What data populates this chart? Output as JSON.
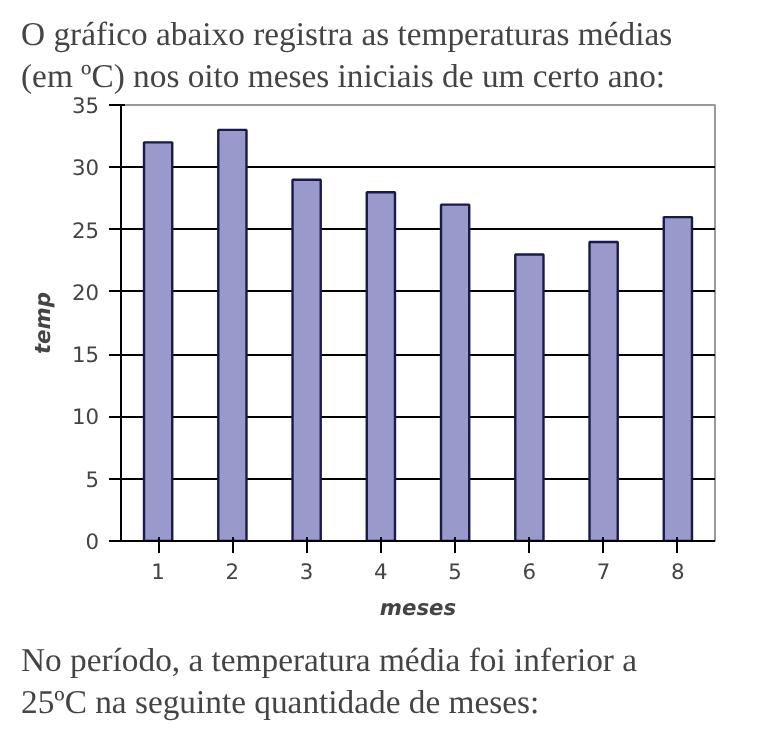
{
  "chart_data": {
    "type": "bar",
    "title": "O gráfico abaixo registra as temperaturas médias (em ºC) nos oito meses iniciais de um certo ano:",
    "annotations": [
      "No período, a temperatura média foi inferior a 25ºC na seguinte quantidade de meses:"
    ],
    "xlabel": "meses",
    "ylabel": "temp",
    "categories": [
      "1",
      "2",
      "3",
      "4",
      "5",
      "6",
      "7",
      "8"
    ],
    "values": [
      32,
      33,
      29,
      28,
      27,
      23,
      24,
      26
    ],
    "color": "#9999cc",
    "ylim": [
      0,
      35
    ],
    "yticks": [
      0,
      5,
      10,
      15,
      20,
      25,
      30,
      35
    ],
    "grid": "y"
  }
}
